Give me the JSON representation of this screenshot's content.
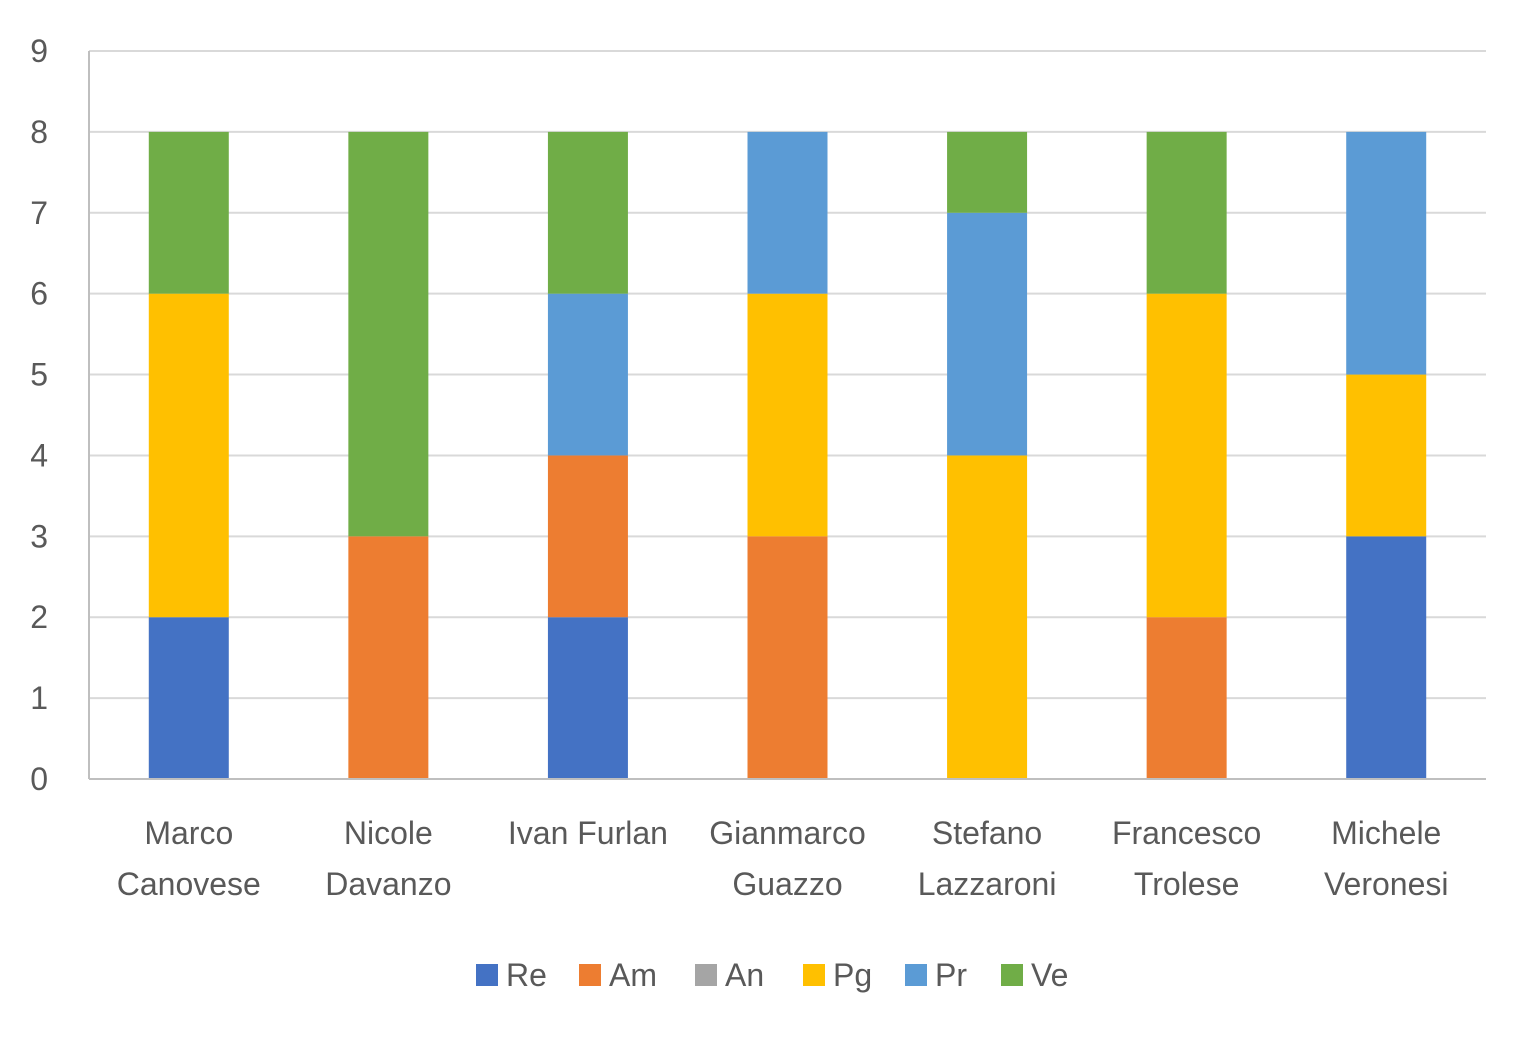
{
  "chart_data": {
    "type": "bar",
    "stacked": true,
    "title": "",
    "xlabel": "",
    "ylabel": "",
    "ylim": [
      0,
      9
    ],
    "yticks": [
      0,
      1,
      2,
      3,
      4,
      5,
      6,
      7,
      8,
      9
    ],
    "grid": true,
    "legend_position": "bottom",
    "categories": [
      [
        "Marco",
        "Canovese"
      ],
      [
        "Nicole",
        "Davanzo"
      ],
      [
        "Ivan Furlan"
      ],
      [
        "Gianmarco",
        "Guazzo"
      ],
      [
        "Stefano",
        "Lazzaroni"
      ],
      [
        "Francesco",
        "Trolese"
      ],
      [
        "Michele",
        "Veronesi"
      ]
    ],
    "series": [
      {
        "name": "Re",
        "color": "#4472C4",
        "values": [
          2,
          0,
          2,
          0,
          0,
          0,
          3
        ]
      },
      {
        "name": "Am",
        "color": "#ED7D31",
        "values": [
          0,
          3,
          2,
          3,
          0,
          2,
          0
        ]
      },
      {
        "name": "An",
        "color": "#A5A5A5",
        "values": [
          0,
          0,
          0,
          0,
          0,
          0,
          0
        ]
      },
      {
        "name": "Pg",
        "color": "#FFC000",
        "values": [
          4,
          0,
          0,
          3,
          4,
          4,
          2
        ]
      },
      {
        "name": "Pr",
        "color": "#5B9BD5",
        "values": [
          0,
          0,
          2,
          2,
          3,
          0,
          3
        ]
      },
      {
        "name": "Ve",
        "color": "#70AD47",
        "values": [
          2,
          5,
          2,
          0,
          1,
          2,
          0
        ]
      }
    ]
  }
}
